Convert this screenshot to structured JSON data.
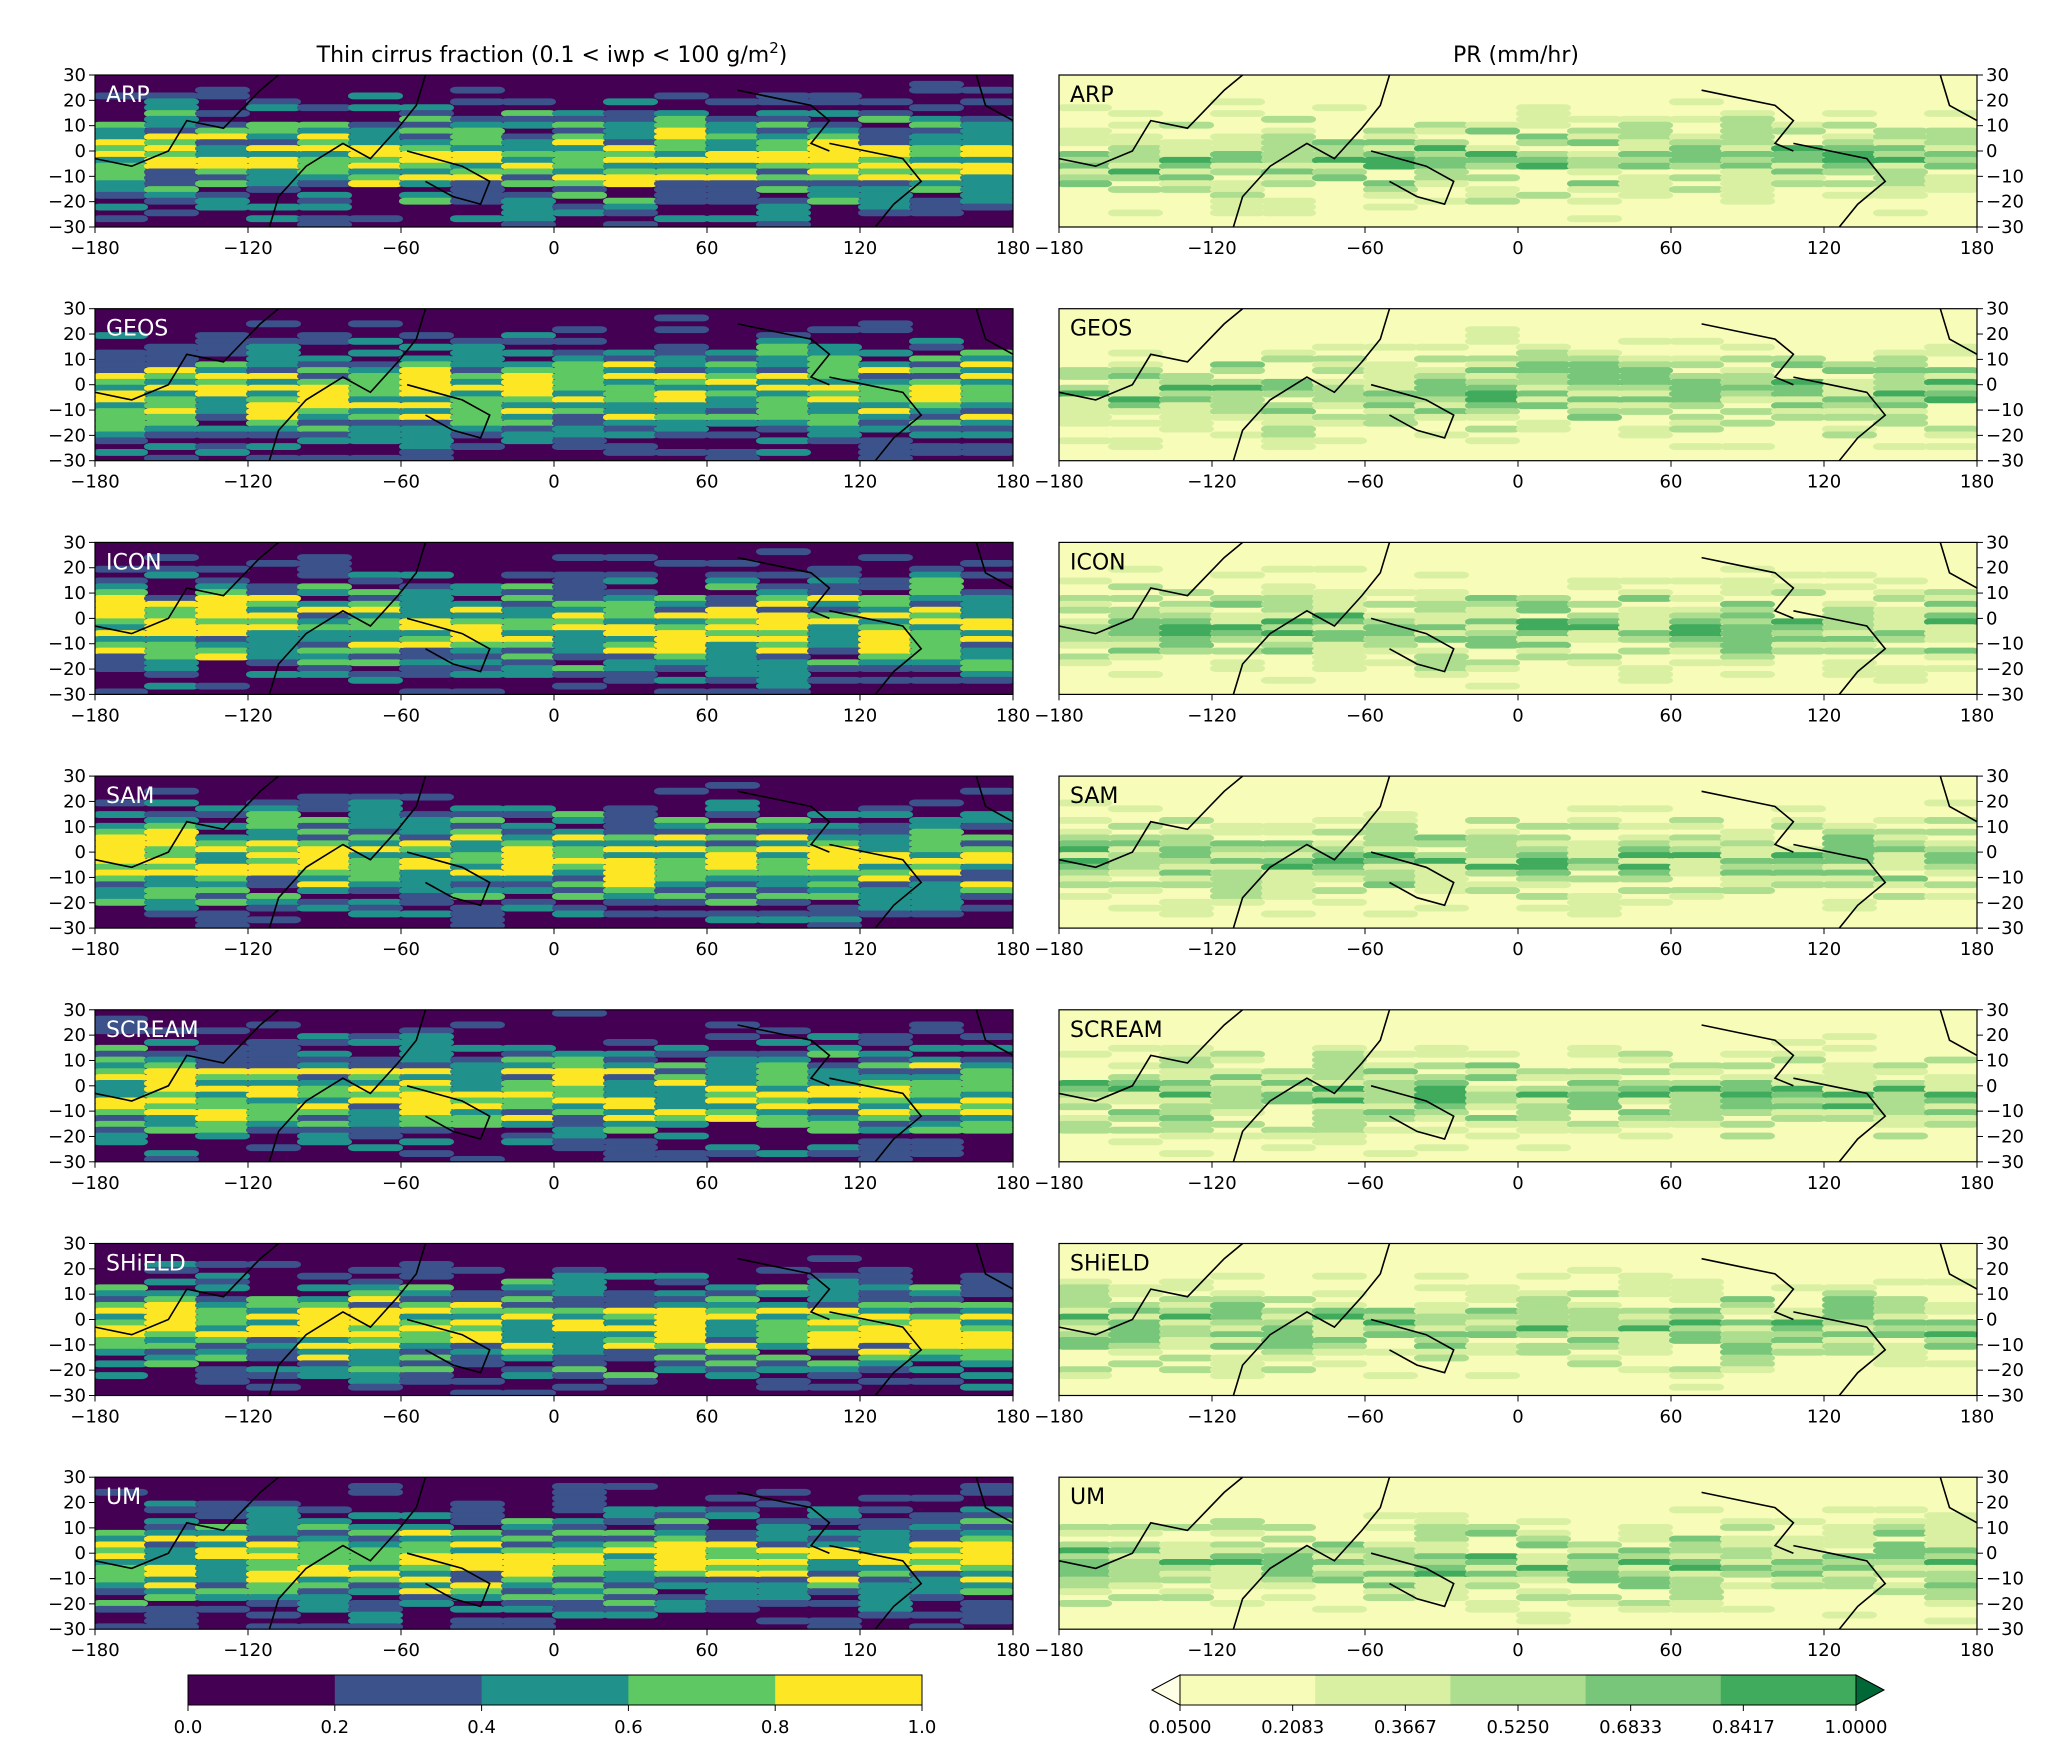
{
  "chart_data": [
    {
      "type": "heatmap",
      "title": "Thin cirrus fraction (0.1 < iwp < 100 g/m²)",
      "title_main": "Thin cirrus fraction (0.1 < iwp < 100 g/m",
      "title_sup": "2",
      "title_end": ")",
      "panels": [
        "ARP",
        "GEOS",
        "ICON",
        "SAM",
        "SCREAM",
        "SHiELD",
        "UM"
      ],
      "x_ticks": [
        "−180",
        "−120",
        "−60",
        "0",
        "60",
        "120",
        "180"
      ],
      "y_ticks": [
        "30",
        "20",
        "10",
        "0",
        "−10",
        "−20",
        "−30"
      ],
      "xlim": [
        -180,
        180
      ],
      "ylim": [
        -30,
        30
      ],
      "colormap": "viridis",
      "colorbar": {
        "levels": [
          "0.0",
          "0.2",
          "0.4",
          "0.6",
          "0.8",
          "1.0"
        ],
        "colors": [
          "#440154",
          "#3b528b",
          "#21918c",
          "#5ec962",
          "#fde725"
        ]
      }
    },
    {
      "type": "heatmap",
      "title": "PR (mm/hr)",
      "panels": [
        "ARP",
        "GEOS",
        "ICON",
        "SAM",
        "SCREAM",
        "SHiELD",
        "UM"
      ],
      "x_ticks": [
        "−180",
        "−120",
        "−60",
        "0",
        "60",
        "120",
        "180"
      ],
      "y_ticks": [
        "30",
        "20",
        "10",
        "0",
        "−10",
        "−20",
        "−30"
      ],
      "xlim": [
        -180,
        180
      ],
      "ylim": [
        -30,
        30
      ],
      "colormap": "YlGn",
      "colorbar": {
        "levels": [
          "0.0500",
          "0.2083",
          "0.3667",
          "0.5250",
          "0.6833",
          "0.8417",
          "1.0000"
        ],
        "colors": [
          "#f7fcb9",
          "#d9f0a3",
          "#addd8e",
          "#78c679",
          "#41ab5d",
          "#238443",
          "#006837"
        ],
        "extend": "both"
      }
    }
  ]
}
